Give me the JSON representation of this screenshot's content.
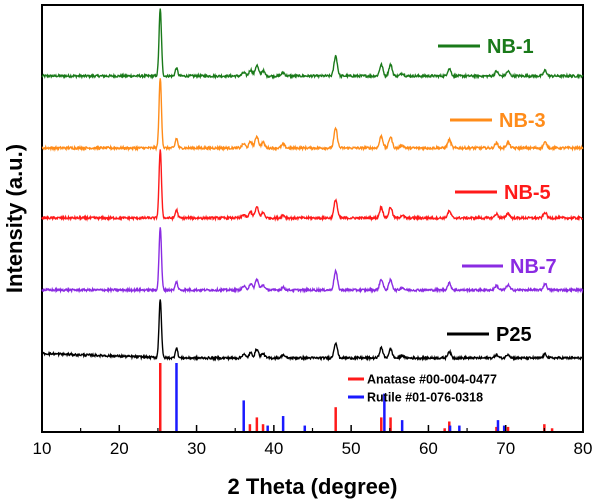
{
  "chart_data": {
    "type": "line",
    "title": "",
    "xlabel": "2 Theta (degree)",
    "ylabel": "Intensity (a.u.)",
    "xlim": [
      10,
      80
    ],
    "xticks": [
      10,
      20,
      30,
      40,
      50,
      60,
      70,
      80
    ],
    "y_scale": "arbitrary units, stacked with vertical offset",
    "grid": false,
    "legend_placement": "right of each curve",
    "series": [
      {
        "name": "NB-1",
        "color": "#1a7a1a",
        "baseline": 0.06,
        "peaks": [
          [
            25.3,
            1.0
          ],
          [
            27.4,
            0.12
          ],
          [
            36.1,
            0.05
          ],
          [
            37.0,
            0.09
          ],
          [
            37.8,
            0.16
          ],
          [
            38.6,
            0.08
          ],
          [
            41.2,
            0.05
          ],
          [
            48.0,
            0.3
          ],
          [
            53.9,
            0.17
          ],
          [
            55.1,
            0.17
          ],
          [
            56.6,
            0.04
          ],
          [
            62.7,
            0.11
          ],
          [
            68.8,
            0.07
          ],
          [
            70.3,
            0.07
          ],
          [
            75.1,
            0.08
          ]
        ]
      },
      {
        "name": "NB-3",
        "color": "#ff8c1a",
        "baseline": 0.04,
        "peaks": [
          [
            25.3,
            1.0
          ],
          [
            27.4,
            0.14
          ],
          [
            36.1,
            0.06
          ],
          [
            37.0,
            0.09
          ],
          [
            37.8,
            0.17
          ],
          [
            38.6,
            0.08
          ],
          [
            41.2,
            0.05
          ],
          [
            48.0,
            0.28
          ],
          [
            53.9,
            0.17
          ],
          [
            55.1,
            0.16
          ],
          [
            56.6,
            0.04
          ],
          [
            62.7,
            0.12
          ],
          [
            68.8,
            0.07
          ],
          [
            70.3,
            0.08
          ],
          [
            75.1,
            0.08
          ]
        ]
      },
      {
        "name": "NB-5",
        "color": "#ff1a1a",
        "baseline": 0.05,
        "peaks": [
          [
            25.3,
            1.0
          ],
          [
            27.4,
            0.12
          ],
          [
            36.1,
            0.05
          ],
          [
            37.0,
            0.09
          ],
          [
            37.8,
            0.16
          ],
          [
            38.6,
            0.08
          ],
          [
            41.2,
            0.04
          ],
          [
            48.0,
            0.27
          ],
          [
            53.9,
            0.16
          ],
          [
            55.1,
            0.16
          ],
          [
            56.6,
            0.04
          ],
          [
            62.7,
            0.1
          ],
          [
            68.8,
            0.06
          ],
          [
            70.3,
            0.07
          ],
          [
            75.1,
            0.08
          ]
        ]
      },
      {
        "name": "NB-7",
        "color": "#8a2be2",
        "baseline": 0.06,
        "peaks": [
          [
            25.3,
            1.0
          ],
          [
            27.4,
            0.13
          ],
          [
            36.1,
            0.06
          ],
          [
            37.0,
            0.1
          ],
          [
            37.8,
            0.17
          ],
          [
            38.6,
            0.08
          ],
          [
            41.2,
            0.04
          ],
          [
            48.0,
            0.3
          ],
          [
            53.9,
            0.17
          ],
          [
            55.1,
            0.16
          ],
          [
            56.6,
            0.04
          ],
          [
            62.7,
            0.11
          ],
          [
            68.8,
            0.07
          ],
          [
            70.3,
            0.08
          ],
          [
            75.1,
            0.1
          ]
        ]
      },
      {
        "name": "P25",
        "color": "#000000",
        "baseline": 0.08,
        "peaks": [
          [
            25.3,
            0.92
          ],
          [
            27.4,
            0.16
          ],
          [
            36.1,
            0.06
          ],
          [
            37.0,
            0.08
          ],
          [
            37.8,
            0.14
          ],
          [
            38.6,
            0.07
          ],
          [
            41.2,
            0.05
          ],
          [
            48.0,
            0.24
          ],
          [
            53.9,
            0.16
          ],
          [
            55.1,
            0.14
          ],
          [
            56.6,
            0.04
          ],
          [
            62.7,
            0.1
          ],
          [
            68.8,
            0.05
          ],
          [
            70.3,
            0.06
          ],
          [
            75.1,
            0.06
          ]
        ]
      }
    ],
    "reference_patterns": [
      {
        "name": "Anatase #00-004-0477",
        "color": "#ff1a1a",
        "lines": [
          [
            25.3,
            100
          ],
          [
            36.9,
            10
          ],
          [
            37.8,
            20
          ],
          [
            38.6,
            10
          ],
          [
            48.0,
            35
          ],
          [
            53.9,
            20
          ],
          [
            55.1,
            20
          ],
          [
            62.1,
            4
          ],
          [
            62.7,
            14
          ],
          [
            68.8,
            6
          ],
          [
            70.3,
            6
          ],
          [
            75.0,
            10
          ],
          [
            76.0,
            4
          ]
        ]
      },
      {
        "name": "Rutile #01-076-0318",
        "color": "#1a1aff",
        "lines": [
          [
            27.4,
            100
          ],
          [
            36.1,
            45
          ],
          [
            39.2,
            8
          ],
          [
            41.2,
            22
          ],
          [
            44.0,
            8
          ],
          [
            54.3,
            55
          ],
          [
            56.6,
            16
          ],
          [
            62.8,
            8
          ],
          [
            64.0,
            8
          ],
          [
            69.0,
            16
          ],
          [
            69.8,
            8
          ]
        ]
      }
    ]
  }
}
